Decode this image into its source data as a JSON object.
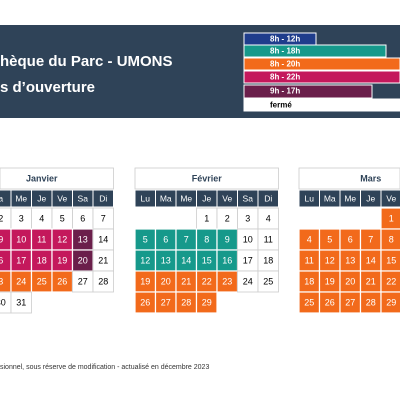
{
  "header": {
    "title_lines": [
      "hèque du Parc - UMONS",
      "s d’ouverture"
    ]
  },
  "legend": [
    {
      "label": "8h - 12h",
      "color": "#1f3d8c"
    },
    {
      "label": "8h - 18h",
      "color": "#16998b"
    },
    {
      "label": "8h - 20h",
      "color": "#f26a1b"
    },
    {
      "label": "8h - 22h",
      "color": "#c4185c"
    },
    {
      "label": "9h - 17h",
      "color": "#6b1f4b"
    },
    {
      "label": "fermé",
      "color": "#ffffff"
    }
  ],
  "calendars": [
    {
      "month": "Janvier",
      "headers": [
        "a",
        "Me",
        "Je",
        "Ve",
        "Sa",
        "Di"
      ],
      "rows": [
        [
          {
            "day": "2"
          },
          {
            "day": "3"
          },
          {
            "day": "4"
          },
          {
            "day": "5"
          },
          {
            "day": "6"
          },
          {
            "day": "7"
          }
        ],
        [
          {
            "day": "9",
            "color": "#c4185c"
          },
          {
            "day": "10",
            "color": "#c4185c"
          },
          {
            "day": "11",
            "color": "#c4185c"
          },
          {
            "day": "12",
            "color": "#c4185c"
          },
          {
            "day": "13",
            "color": "#6b1f4b"
          },
          {
            "day": "14"
          }
        ],
        [
          {
            "day": "6",
            "color": "#c4185c"
          },
          {
            "day": "17",
            "color": "#c4185c"
          },
          {
            "day": "18",
            "color": "#c4185c"
          },
          {
            "day": "19",
            "color": "#c4185c"
          },
          {
            "day": "20",
            "color": "#6b1f4b"
          },
          {
            "day": "21"
          }
        ],
        [
          {
            "day": "3",
            "color": "#f26a1b"
          },
          {
            "day": "24",
            "color": "#f26a1b"
          },
          {
            "day": "25",
            "color": "#f26a1b"
          },
          {
            "day": "26",
            "color": "#f26a1b"
          },
          {
            "day": "27"
          },
          {
            "day": "28"
          }
        ],
        [
          {
            "day": "30"
          },
          {
            "day": "31"
          }
        ]
      ]
    },
    {
      "month": "Février",
      "headers": [
        "Lu",
        "Ma",
        "Me",
        "Je",
        "Ve",
        "Sa",
        "Di"
      ],
      "rows": [
        [
          null,
          null,
          null,
          {
            "day": "1"
          },
          {
            "day": "2"
          },
          {
            "day": "3"
          },
          {
            "day": "4"
          }
        ],
        [
          {
            "day": "5",
            "color": "#16998b"
          },
          {
            "day": "6",
            "color": "#16998b"
          },
          {
            "day": "7",
            "color": "#16998b"
          },
          {
            "day": "8",
            "color": "#16998b"
          },
          {
            "day": "9",
            "color": "#16998b"
          },
          {
            "day": "10"
          },
          {
            "day": "11"
          }
        ],
        [
          {
            "day": "12",
            "color": "#16998b"
          },
          {
            "day": "13",
            "color": "#16998b"
          },
          {
            "day": "14",
            "color": "#16998b"
          },
          {
            "day": "15",
            "color": "#16998b"
          },
          {
            "day": "16",
            "color": "#16998b"
          },
          {
            "day": "17"
          },
          {
            "day": "18"
          }
        ],
        [
          {
            "day": "19",
            "color": "#f26a1b"
          },
          {
            "day": "20",
            "color": "#f26a1b"
          },
          {
            "day": "21",
            "color": "#f26a1b"
          },
          {
            "day": "22",
            "color": "#f26a1b"
          },
          {
            "day": "23",
            "color": "#f26a1b"
          },
          {
            "day": "24"
          },
          {
            "day": "25"
          }
        ],
        [
          {
            "day": "26",
            "color": "#f26a1b"
          },
          {
            "day": "27",
            "color": "#f26a1b"
          },
          {
            "day": "28",
            "color": "#f26a1b"
          },
          {
            "day": "29",
            "color": "#f26a1b"
          }
        ]
      ]
    },
    {
      "month": "Mars",
      "headers": [
        "Lu",
        "Ma",
        "Me",
        "Je",
        "Ve"
      ],
      "rows": [
        [
          null,
          null,
          null,
          null,
          {
            "day": "1",
            "color": "#f26a1b"
          }
        ],
        [
          {
            "day": "4",
            "color": "#f26a1b"
          },
          {
            "day": "5",
            "color": "#f26a1b"
          },
          {
            "day": "6",
            "color": "#f26a1b"
          },
          {
            "day": "7",
            "color": "#f26a1b"
          },
          {
            "day": "8",
            "color": "#f26a1b"
          }
        ],
        [
          {
            "day": "11",
            "color": "#f26a1b"
          },
          {
            "day": "12",
            "color": "#f26a1b"
          },
          {
            "day": "13",
            "color": "#f26a1b"
          },
          {
            "day": "14",
            "color": "#f26a1b"
          },
          {
            "day": "15",
            "color": "#f26a1b"
          }
        ],
        [
          {
            "day": "18",
            "color": "#f26a1b"
          },
          {
            "day": "19",
            "color": "#f26a1b"
          },
          {
            "day": "20",
            "color": "#f26a1b"
          },
          {
            "day": "21",
            "color": "#f26a1b"
          },
          {
            "day": "22",
            "color": "#f26a1b"
          }
        ],
        [
          {
            "day": "25",
            "color": "#f26a1b"
          },
          {
            "day": "26",
            "color": "#f26a1b"
          },
          {
            "day": "27",
            "color": "#f26a1b"
          },
          {
            "day": "28",
            "color": "#f26a1b"
          },
          {
            "day": "29",
            "color": "#f26a1b"
          }
        ]
      ]
    }
  ],
  "footer": "sionnel, sous réserve de modification - actualisé en décembre 2023"
}
